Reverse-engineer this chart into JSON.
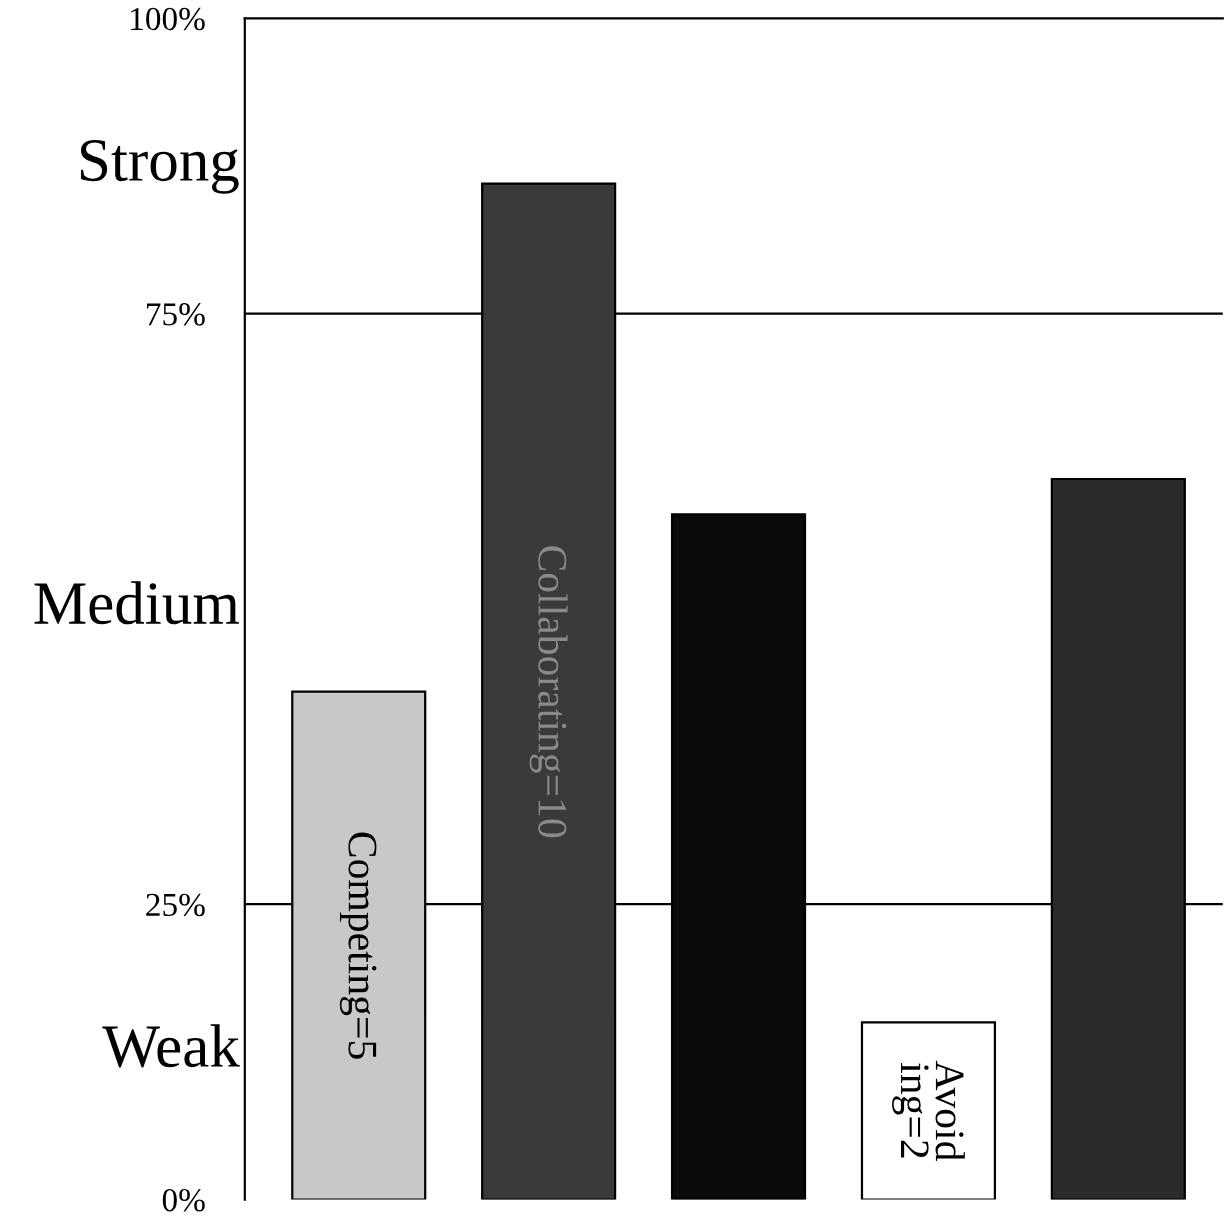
{
  "chart_data": {
    "type": "bar",
    "categories": [
      "Competing=5",
      "Collaborating=10",
      null,
      "Avoid\ning=2",
      null
    ],
    "values": [
      43,
      86,
      58,
      15,
      61
    ],
    "colors": [
      "#c8c8c8",
      "#3a3a3a",
      "#0a0a0a",
      "#ffffff",
      "#2a2a2a"
    ],
    "annotations": [
      "Strong",
      "Medium",
      "Weak"
    ],
    "ylim": [
      0,
      100
    ],
    "yticks": [
      {
        "value": 0,
        "label": "0%"
      },
      {
        "value": 25,
        "label": "25%"
      },
      {
        "value": 75,
        "label": "75%"
      },
      {
        "value": 100,
        "label": "100%"
      }
    ],
    "ref_lines": [
      {
        "axis": "y",
        "value": 25,
        "label": null
      },
      {
        "axis": "y",
        "value": 75,
        "label": null
      }
    ],
    "grid": false,
    "legend": false
  }
}
